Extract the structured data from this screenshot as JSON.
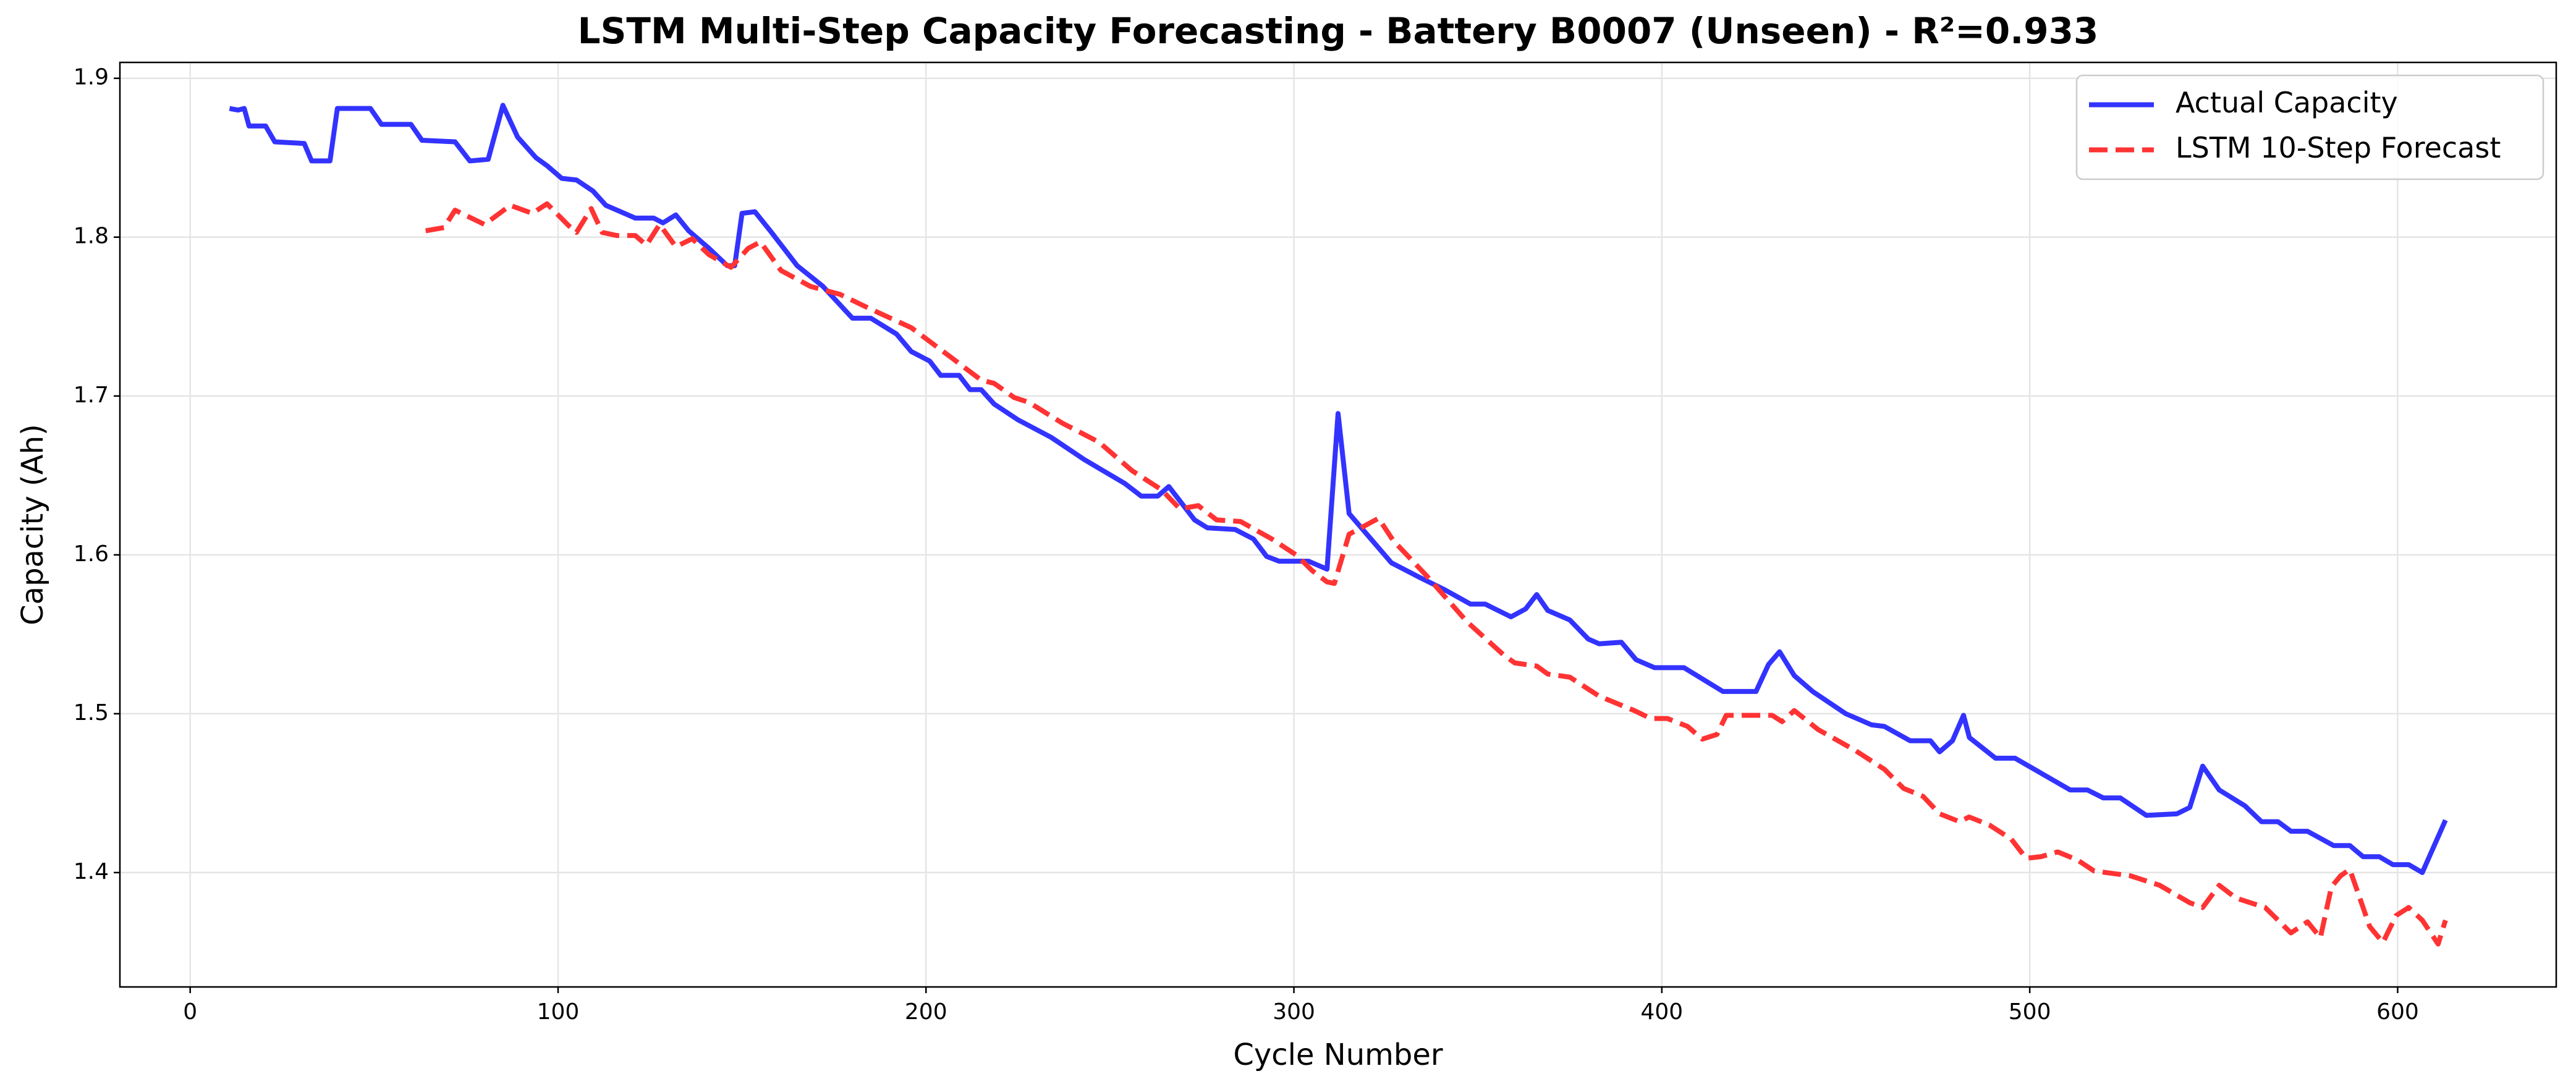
{
  "chart_data": {
    "type": "line",
    "title": "LSTM Multi-Step Capacity Forecasting - Battery B0007 (Unseen) - R²=0.933",
    "x_label": "Cycle Number",
    "y_label": "Capacity (Ah)",
    "grid": true,
    "legend": "upper right",
    "xlim": [
      -19.1,
      643.1
    ],
    "ylim": [
      1.328,
      1.91
    ],
    "xticks": [
      0,
      100,
      200,
      300,
      400,
      500,
      600
    ],
    "yticks": [
      1.4,
      1.5,
      1.6,
      1.7,
      1.8,
      1.9
    ],
    "series": [
      {
        "name": "Actual Capacity",
        "color": "#3333ff",
        "linestyle": "solid",
        "x": [
          10.7,
          13,
          14.7,
          16,
          20.5,
          23,
          31,
          33,
          38,
          40,
          49,
          52,
          60,
          63,
          72,
          76,
          81,
          85,
          89,
          94,
          97,
          101,
          105,
          109.5,
          113,
          121,
          126,
          128.5,
          132,
          135.5,
          141,
          146,
          148,
          150,
          153.5,
          158,
          165,
          172,
          180,
          185,
          192,
          196,
          201,
          204,
          209,
          212,
          215,
          218.5,
          225,
          234,
          243,
          254,
          258.5,
          263,
          266,
          273,
          276.5,
          284,
          289,
          292.6,
          296,
          304,
          309,
          312,
          315,
          326.5,
          334,
          341,
          348,
          352,
          359,
          363,
          366,
          369,
          375,
          380,
          383,
          389,
          393,
          398,
          406,
          416.6,
          425.6,
          429,
          432,
          436,
          441,
          450,
          457,
          460.5,
          467.5,
          473,
          475.5,
          479,
          482,
          483.6,
          490.7,
          496,
          511,
          515.7,
          520,
          524.6,
          531.7,
          540,
          543.5,
          547,
          551.5,
          558.5,
          563,
          567.5,
          571,
          575.5,
          582.6,
          587,
          590.6,
          595,
          598.7,
          603,
          606.7,
          613
        ],
        "values": [
          1.881,
          1.88,
          1.881,
          1.87,
          1.87,
          1.86,
          1.859,
          1.848,
          1.848,
          1.881,
          1.881,
          1.871,
          1.871,
          1.861,
          1.86,
          1.848,
          1.849,
          1.883,
          1.863,
          1.85,
          1.845,
          1.837,
          1.836,
          1.829,
          1.82,
          1.812,
          1.812,
          1.809,
          1.814,
          1.804,
          1.793,
          1.782,
          1.782,
          1.815,
          1.816,
          1.803,
          1.782,
          1.769,
          1.749,
          1.749,
          1.739,
          1.728,
          1.722,
          1.713,
          1.713,
          1.704,
          1.704,
          1.695,
          1.685,
          1.674,
          1.66,
          1.645,
          1.637,
          1.637,
          1.643,
          1.622,
          1.617,
          1.616,
          1.61,
          1.599,
          1.596,
          1.596,
          1.591,
          1.689,
          1.626,
          1.595,
          1.586,
          1.578,
          1.569,
          1.569,
          1.561,
          1.566,
          1.575,
          1.565,
          1.559,
          1.547,
          1.544,
          1.545,
          1.534,
          1.529,
          1.529,
          1.514,
          1.514,
          1.531,
          1.539,
          1.524,
          1.514,
          1.5,
          1.493,
          1.492,
          1.483,
          1.483,
          1.476,
          1.483,
          1.499,
          1.485,
          1.472,
          1.472,
          1.452,
          1.452,
          1.447,
          1.447,
          1.436,
          1.437,
          1.441,
          1.467,
          1.452,
          1.442,
          1.432,
          1.432,
          1.426,
          1.426,
          1.417,
          1.417,
          1.41,
          1.41,
          1.405,
          1.405,
          1.4,
          1.433
        ]
      },
      {
        "name": "LSTM 10-Step Forecast",
        "color": "#ff3333",
        "linestyle": "dashed",
        "x": [
          64,
          69,
          72,
          80,
          87,
          93,
          97,
          103,
          105,
          109,
          112,
          116,
          121,
          124,
          127.6,
          132,
          136.5,
          141,
          147,
          151.7,
          155,
          160.6,
          168.6,
          176.6,
          184.7,
          196,
          207,
          215,
          218.5,
          224,
          228,
          237,
          247,
          256,
          264,
          269,
          274,
          279,
          285.5,
          294,
          300.6,
          305,
          309,
          311,
          315,
          323,
          327,
          336,
          347,
          357,
          360,
          366,
          369,
          375,
          383,
          392.5,
          397,
          401.5,
          407,
          411,
          415,
          417.5,
          423,
          430,
          432.7,
          436,
          442.5,
          452.5,
          460.5,
          465.7,
          471,
          475.5,
          481,
          483.5,
          489,
          495,
          499,
          503,
          507.6,
          512.9,
          517.5,
          527.3,
          535.3,
          543.5,
          547,
          551.5,
          556,
          564,
          571,
          575.5,
          579,
          582,
          584.5,
          587,
          592.4,
          596,
          599.6,
          603,
          606.7,
          611,
          613
        ],
        "values": [
          1.804,
          1.806,
          1.817,
          1.808,
          1.82,
          1.815,
          1.821,
          1.807,
          1.803,
          1.818,
          1.803,
          1.801,
          1.801,
          1.795,
          1.808,
          1.794,
          1.799,
          1.789,
          1.781,
          1.793,
          1.797,
          1.779,
          1.769,
          1.764,
          1.755,
          1.743,
          1.724,
          1.71,
          1.708,
          1.699,
          1.696,
          1.683,
          1.671,
          1.653,
          1.641,
          1.629,
          1.631,
          1.622,
          1.621,
          1.61,
          1.6,
          1.59,
          1.583,
          1.582,
          1.613,
          1.623,
          1.609,
          1.587,
          1.558,
          1.537,
          1.532,
          1.53,
          1.525,
          1.523,
          1.511,
          1.502,
          1.497,
          1.497,
          1.492,
          1.484,
          1.487,
          1.499,
          1.499,
          1.499,
          1.495,
          1.502,
          1.49,
          1.477,
          1.465,
          1.453,
          1.448,
          1.437,
          1.432,
          1.435,
          1.43,
          1.421,
          1.409,
          1.41,
          1.413,
          1.408,
          1.401,
          1.398,
          1.392,
          1.381,
          1.378,
          1.392,
          1.384,
          1.378,
          1.362,
          1.369,
          1.359,
          1.391,
          1.398,
          1.402,
          1.366,
          1.356,
          1.373,
          1.378,
          1.37,
          1.355,
          1.37
        ]
      }
    ]
  }
}
